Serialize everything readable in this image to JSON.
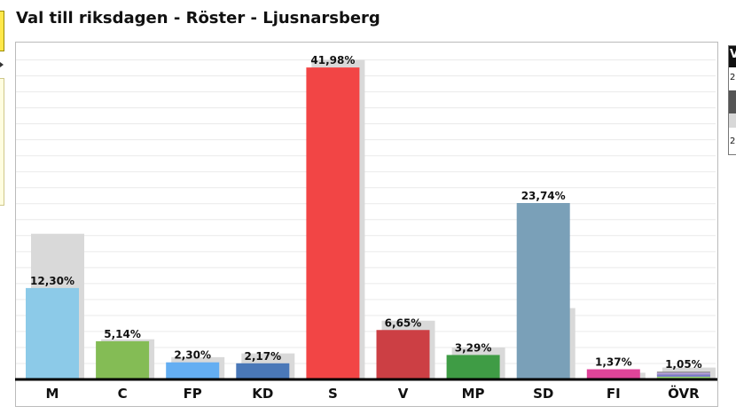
{
  "page": {
    "title": "Val till riksdagen - Röster - Ljusnarsberg"
  },
  "right_panel": {
    "header": "V",
    "row1": "2",
    "row2": "2"
  },
  "chart_data": {
    "type": "bar",
    "title": "Val till riksdagen - Röster - Ljusnarsberg",
    "categories": [
      "M",
      "C",
      "FP",
      "KD",
      "S",
      "V",
      "MP",
      "SD",
      "FI",
      "ÖVR"
    ],
    "series": [
      {
        "values": [
          12.3,
          5.14,
          2.3,
          2.17,
          41.98,
          6.65,
          3.29,
          23.74,
          1.37,
          1.05
        ],
        "labels": [
          "12,30%",
          "5,14%",
          "2,30%",
          "2,17%",
          "41,98%",
          "6,65%",
          "3,29%",
          "23,74%",
          "1,37%",
          "1,05%"
        ],
        "colors": [
          "#8ccae8",
          "#84bc55",
          "#64aef2",
          "#4a78b8",
          "#f24545",
          "#cc3f44",
          "#3f9c45",
          "#7aa0b8",
          "#e04499",
          "#8a8a8a"
        ]
      },
      {
        "values": [
          19.6,
          5.4,
          3.0,
          3.5,
          43.0,
          7.9,
          4.3,
          9.6,
          0.9,
          1.6
        ],
        "color": "#d9d9d9"
      }
    ],
    "ylim": [
      0,
      44.5
    ],
    "grid": true,
    "legend": "none",
    "xlabel": "",
    "ylabel": ""
  }
}
